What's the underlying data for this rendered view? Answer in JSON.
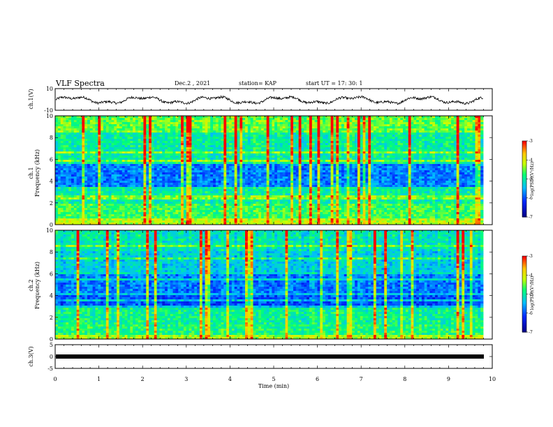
{
  "header": {
    "title": "VLF Spectra",
    "date": "Dec.2 , 2021",
    "station": "station= KAP",
    "start": "start UT = 17: 30: 1"
  },
  "chart_data": [
    {
      "type": "line",
      "name": "ch1-waveform",
      "ylabel": "ch.1(V)",
      "ylim": [
        -10,
        10
      ],
      "yticks": [
        "10",
        "-10"
      ],
      "xlim": [
        0,
        10
      ]
    },
    {
      "type": "heatmap",
      "name": "ch1-spectrogram",
      "ylabel": "ch.1 Frequency (kHz)",
      "ylim": [
        0,
        10
      ],
      "yticks": [
        "0",
        "2",
        "4",
        "6",
        "8",
        "10"
      ],
      "xlim": [
        0,
        10
      ],
      "colorbar": {
        "label": "log(PSD)(V²/Hz)",
        "min": -7,
        "max": -3,
        "ticks": [
          "-3",
          "-4",
          "-5",
          "-6",
          "-7"
        ]
      }
    },
    {
      "type": "heatmap",
      "name": "ch2-spectrogram",
      "ylabel": "ch.2 Frequency (kHz)",
      "ylim": [
        0,
        10
      ],
      "yticks": [
        "0",
        "2",
        "4",
        "6",
        "8",
        "10"
      ],
      "xlim": [
        0,
        10
      ],
      "colorbar": {
        "label": "log(PSD)(V²/Hz)",
        "min": -7,
        "max": -3,
        "ticks": [
          "-3",
          "-4",
          "-5",
          "-6",
          "-7"
        ]
      }
    },
    {
      "type": "line",
      "name": "ch3-waveform",
      "ylabel": "ch.3(V)",
      "ylim": [
        -5,
        5
      ],
      "yticks": [
        "5",
        "0",
        "-5"
      ],
      "xlim": [
        0,
        10
      ]
    }
  ],
  "xaxis": {
    "label": "Time (min)",
    "ticks": [
      "0",
      "1",
      "2",
      "3",
      "4",
      "5",
      "6",
      "7",
      "8",
      "9",
      "10"
    ]
  },
  "labels": {
    "ch1_label": "ch.1",
    "ch2_label": "ch.2",
    "freq_label": "Frequency (kHz)"
  },
  "colors": {
    "low": "#00008b",
    "mid": "#00ff7f",
    "high": "#ff0000"
  }
}
